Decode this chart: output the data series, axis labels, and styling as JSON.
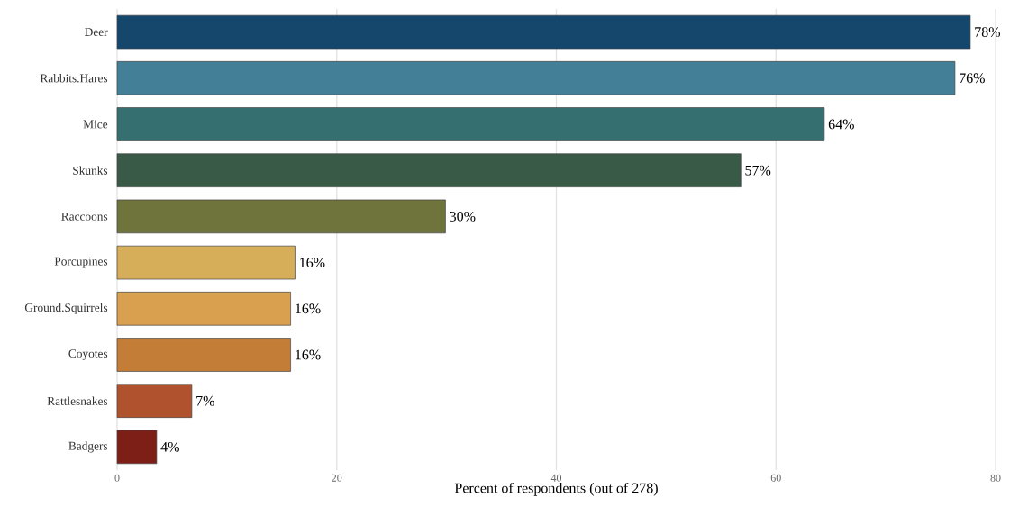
{
  "chart_data": {
    "type": "bar",
    "orientation": "horizontal",
    "xlabel": "Percent of respondents (out of 278)",
    "categories": [
      "Deer",
      "Rabbits.Hares",
      "Mice",
      "Skunks",
      "Raccoons",
      "Porcupines",
      "Ground.Squirrels",
      "Coyotes",
      "Rattlesnakes",
      "Badgers"
    ],
    "values": [
      77.7,
      76.3,
      64.4,
      56.8,
      29.9,
      16.2,
      15.8,
      15.8,
      6.8,
      3.6
    ],
    "value_labels": [
      "78%",
      "76%",
      "64%",
      "57%",
      "30%",
      "16%",
      "16%",
      "16%",
      "7%",
      "4%"
    ],
    "colors": [
      "#15466b",
      "#437f96",
      "#366f70",
      "#3a5a48",
      "#6f733c",
      "#d6ad58",
      "#d8a04f",
      "#c47d37",
      "#b0522e",
      "#7e1f17"
    ],
    "xlim": [
      0,
      80
    ],
    "xticks": [
      0,
      20,
      40,
      60,
      80
    ],
    "grid": "x"
  }
}
